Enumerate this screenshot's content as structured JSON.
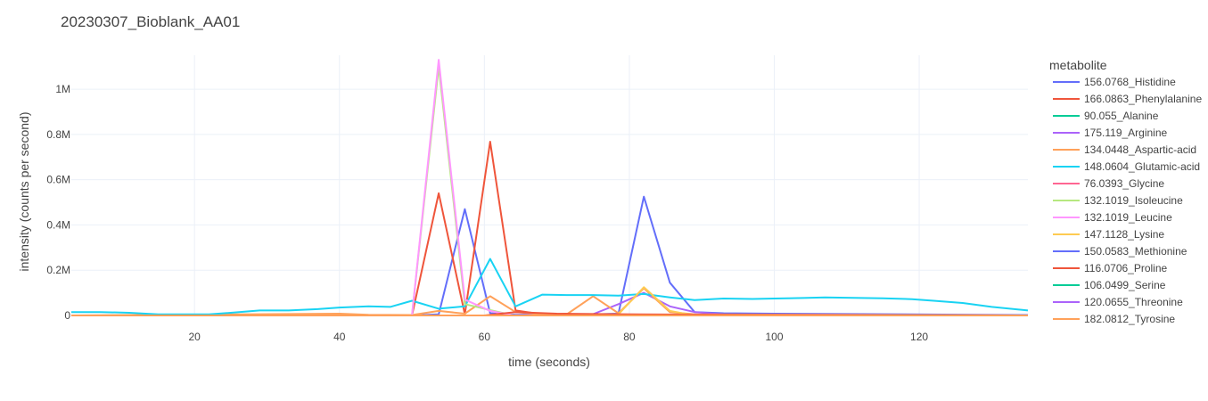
{
  "chart_data": {
    "type": "line",
    "title": "20230307_Bioblank_AA01",
    "xlabel": "time (seconds)",
    "ylabel": "intensity (counts per second)",
    "xlim": [
      3,
      135
    ],
    "ylim": [
      0,
      1150000
    ],
    "x_ticks": [
      {
        "value": 20,
        "label": "20"
      },
      {
        "value": 40,
        "label": "40"
      },
      {
        "value": 60,
        "label": "60"
      },
      {
        "value": 80,
        "label": "80"
      },
      {
        "value": 100,
        "label": "100"
      },
      {
        "value": 120,
        "label": "120"
      }
    ],
    "y_ticks": [
      {
        "value": 0,
        "label": "0"
      },
      {
        "value": 200000,
        "label": "0.2M"
      },
      {
        "value": 400000,
        "label": "0.4M"
      },
      {
        "value": 600000,
        "label": "0.6M"
      },
      {
        "value": 800000,
        "label": "0.8M"
      },
      {
        "value": 1000000,
        "label": "1M"
      }
    ],
    "grid": true,
    "legend_title": "metabolite",
    "legend_position": "right",
    "series": [
      {
        "name": "156.0768_Histidine",
        "color": "#636efa",
        "x": [
          3,
          50,
          53.7,
          57.3,
          60.8,
          64.3,
          71.5,
          75,
          78.5,
          82,
          85.6,
          89,
          93,
          100,
          135
        ],
        "y": [
          0,
          0,
          5000,
          470000,
          10000,
          3000,
          5000,
          5000,
          8000,
          525000,
          145000,
          15000,
          10000,
          8000,
          2000
        ]
      },
      {
        "name": "166.0863_Phenylalanine",
        "color": "#ef553b",
        "x": [
          3,
          50,
          53.7,
          57.3,
          60.8,
          64.3,
          68,
          135
        ],
        "y": [
          0,
          0,
          540000,
          5000,
          768000,
          22000,
          5000,
          0
        ]
      },
      {
        "name": "90.055_Alanine",
        "color": "#00cc96",
        "x": [
          3,
          40,
          60,
          80,
          100,
          135
        ],
        "y": [
          0,
          0,
          0,
          0,
          0,
          0
        ]
      },
      {
        "name": "175.119_Arginine",
        "color": "#ab63fa",
        "x": [
          3,
          64,
          71.5,
          75,
          78.5,
          82,
          85.6,
          89,
          93,
          135
        ],
        "y": [
          0,
          0,
          5000,
          6000,
          50000,
          100000,
          40000,
          15000,
          5000,
          0
        ]
      },
      {
        "name": "134.0448_Aspartic-acid",
        "color": "#ffa15a",
        "x": [
          3,
          40,
          44,
          50,
          53.7,
          57.3,
          60.8,
          64.3,
          68,
          71.5,
          75,
          78.5,
          82,
          85.6,
          89,
          135
        ],
        "y": [
          0,
          8000,
          3000,
          2000,
          20000,
          8000,
          85000,
          15000,
          5000,
          8000,
          85000,
          10000,
          120000,
          15000,
          5000,
          0
        ]
      },
      {
        "name": "148.0604_Glutamic-acid",
        "color": "#19d3f3",
        "x": [
          3,
          7,
          11,
          15,
          19,
          22,
          25,
          29,
          33,
          37,
          40,
          44,
          47,
          50,
          53.7,
          57.3,
          60.8,
          64.3,
          68,
          71.5,
          75,
          78.5,
          82,
          85.6,
          89,
          93,
          97,
          100,
          104,
          107,
          111,
          115,
          119,
          122,
          126,
          130,
          135
        ],
        "y": [
          15000,
          15000,
          12000,
          5000,
          5000,
          5000,
          12000,
          22000,
          22000,
          28000,
          35000,
          40000,
          38000,
          65000,
          30000,
          40000,
          250000,
          40000,
          92000,
          90000,
          90000,
          88000,
          95000,
          80000,
          68000,
          75000,
          73000,
          75000,
          77000,
          80000,
          78000,
          76000,
          72000,
          65000,
          55000,
          38000,
          22000
        ]
      },
      {
        "name": "76.0393_Glycine",
        "color": "#ff6692",
        "x": [
          3,
          40,
          60,
          80,
          100,
          135
        ],
        "y": [
          0,
          0,
          0,
          0,
          0,
          0
        ]
      },
      {
        "name": "132.1019_Isoleucine",
        "color": "#b6e880",
        "x": [
          3,
          50,
          53.7,
          57.3,
          64,
          135
        ],
        "y": [
          0,
          0,
          1100000,
          50000,
          0,
          0
        ]
      },
      {
        "name": "132.1019_Leucine",
        "color": "#ff97ff",
        "x": [
          3,
          50,
          53.7,
          57.3,
          60.8,
          64,
          135
        ],
        "y": [
          0,
          0,
          1130000,
          70000,
          20000,
          0,
          0
        ]
      },
      {
        "name": "147.1128_Lysine",
        "color": "#fecb52",
        "x": [
          3,
          75,
          78.5,
          82,
          85.6,
          89,
          135
        ],
        "y": [
          0,
          0,
          5000,
          125000,
          20000,
          0,
          0
        ]
      },
      {
        "name": "150.0583_Methionine",
        "color": "#636efa",
        "x": [
          3,
          40,
          60,
          80,
          100,
          135
        ],
        "y": [
          0,
          0,
          0,
          0,
          0,
          0
        ]
      },
      {
        "name": "116.0706_Proline",
        "color": "#ef553b",
        "x": [
          3,
          40,
          60,
          64.3,
          70,
          80,
          100,
          135
        ],
        "y": [
          0,
          0,
          0,
          15000,
          8000,
          5000,
          2000,
          0
        ]
      },
      {
        "name": "106.0499_Serine",
        "color": "#00cc96",
        "x": [
          3,
          40,
          60,
          80,
          100,
          135
        ],
        "y": [
          0,
          0,
          0,
          0,
          0,
          0
        ]
      },
      {
        "name": "120.0655_Threonine",
        "color": "#ab63fa",
        "x": [
          3,
          40,
          60,
          80,
          100,
          135
        ],
        "y": [
          0,
          0,
          0,
          0,
          0,
          0
        ]
      },
      {
        "name": "182.0812_Tyrosine",
        "color": "#ffa15a",
        "x": [
          3,
          40,
          60,
          80,
          100,
          135
        ],
        "y": [
          0,
          0,
          0,
          0,
          0,
          0
        ]
      }
    ]
  }
}
